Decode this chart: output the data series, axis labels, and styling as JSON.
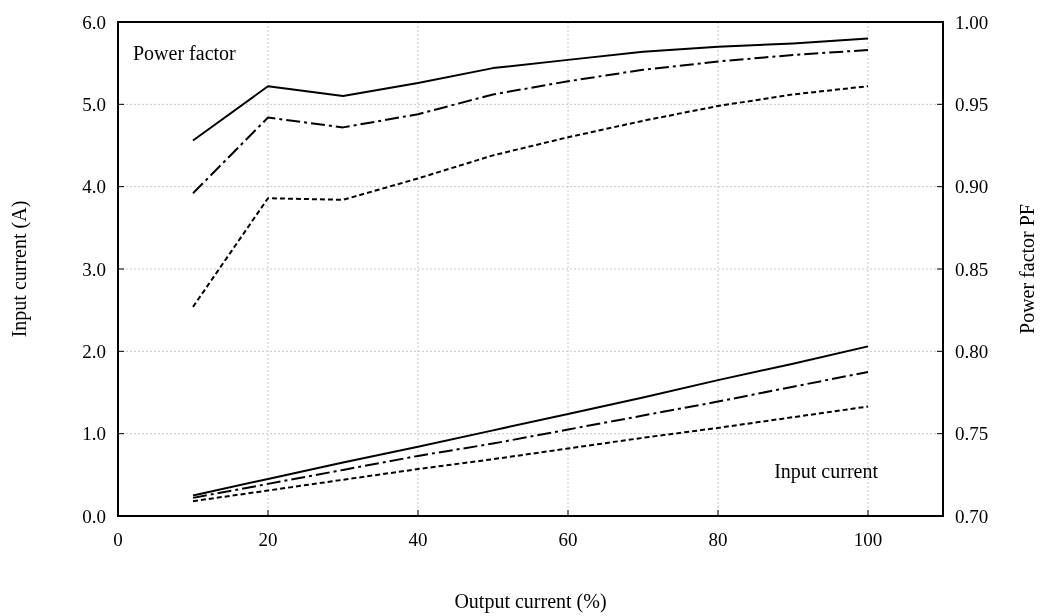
{
  "chart_data": {
    "type": "line",
    "xlabel": "Output current (%)",
    "ylabel": "Input current (A)",
    "y2label": "Power factor PF",
    "annotations": [
      "Power factor",
      "Input current"
    ],
    "x": [
      10,
      20,
      30,
      40,
      50,
      60,
      70,
      80,
      90,
      100
    ],
    "xlim": [
      0,
      110
    ],
    "xticks": [
      0,
      20,
      40,
      60,
      80,
      100
    ],
    "ylim": [
      0,
      6
    ],
    "yticks": [
      {
        "value": 0,
        "label": "0.0"
      },
      {
        "value": 1,
        "label": "1.0"
      },
      {
        "value": 2,
        "label": "2.0"
      },
      {
        "value": 3,
        "label": "3.0"
      },
      {
        "value": 4,
        "label": "4.0"
      },
      {
        "value": 5,
        "label": "5.0"
      },
      {
        "value": 6,
        "label": "6.0"
      }
    ],
    "y2lim": [
      0.7,
      1.0
    ],
    "y2ticks": [
      {
        "value": 0.7,
        "label": "0.70"
      },
      {
        "value": 0.75,
        "label": "0.75"
      },
      {
        "value": 0.8,
        "label": "0.80"
      },
      {
        "value": 0.85,
        "label": "0.85"
      },
      {
        "value": 0.9,
        "label": "0.90"
      },
      {
        "value": 0.95,
        "label": "0.95"
      },
      {
        "value": 1.0,
        "label": "1.00"
      }
    ],
    "grid": true,
    "marker": "none",
    "series": [
      {
        "color": "#000000",
        "axis": "y2",
        "line_style": "solid",
        "values": [
          0.928,
          0.961,
          0.955,
          0.963,
          0.972,
          0.977,
          0.982,
          0.985,
          0.987,
          0.99
        ]
      },
      {
        "color": "#000000",
        "axis": "y2",
        "line_style": "dashdot",
        "values": [
          0.896,
          0.942,
          0.936,
          0.944,
          0.956,
          0.964,
          0.971,
          0.976,
          0.98,
          0.983
        ]
      },
      {
        "color": "#000000",
        "axis": "y2",
        "line_style": "dashed",
        "values": [
          0.827,
          0.893,
          0.892,
          0.905,
          0.919,
          0.93,
          0.94,
          0.949,
          0.956,
          0.961
        ]
      },
      {
        "color": "#000000",
        "line_style": "solid",
        "values": [
          0.25,
          0.45,
          0.65,
          0.84,
          1.04,
          1.24,
          1.44,
          1.65,
          1.85,
          2.06
        ]
      },
      {
        "color": "#000000",
        "line_style": "dashdot",
        "values": [
          0.22,
          0.39,
          0.56,
          0.73,
          0.88,
          1.05,
          1.22,
          1.39,
          1.57,
          1.75
        ]
      },
      {
        "color": "#000000",
        "line_style": "dashed",
        "values": [
          0.18,
          0.31,
          0.44,
          0.57,
          0.69,
          0.82,
          0.95,
          1.07,
          1.2,
          1.33
        ]
      }
    ]
  }
}
